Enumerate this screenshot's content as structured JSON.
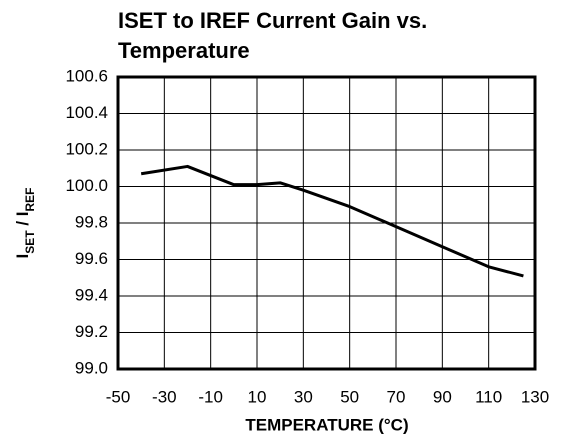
{
  "chart_data": {
    "type": "line",
    "title": [
      "ISET to IREF Current Gain vs.",
      "Temperature"
    ],
    "xlabel": "TEMPERATURE (°C)",
    "ylabel": [
      {
        "text": "I"
      },
      {
        "text": "SET",
        "sub": true
      },
      {
        "text": " / I"
      },
      {
        "text": "REF",
        "sub": true
      }
    ],
    "x": [
      -40,
      -20,
      -10,
      0,
      10,
      20,
      30,
      50,
      70,
      90,
      110,
      125
    ],
    "series": [
      {
        "color": "#000000",
        "values": [
          100.07,
          100.11,
          100.06,
          100.01,
          100.01,
          100.02,
          99.98,
          99.89,
          99.78,
          99.67,
          99.56,
          99.51
        ]
      }
    ],
    "xlim": [
      -50,
      130
    ],
    "xticks": [
      -50,
      -30,
      -10,
      10,
      30,
      50,
      70,
      90,
      110,
      130
    ],
    "ylim": [
      99,
      100.6
    ],
    "yticks": [
      {
        "value": 99,
        "label": "99.0"
      },
      99.2,
      99.4,
      99.6,
      99.8,
      {
        "value": 100,
        "label": "100.0"
      },
      100.2,
      100.4,
      100.6
    ],
    "grid": true
  }
}
